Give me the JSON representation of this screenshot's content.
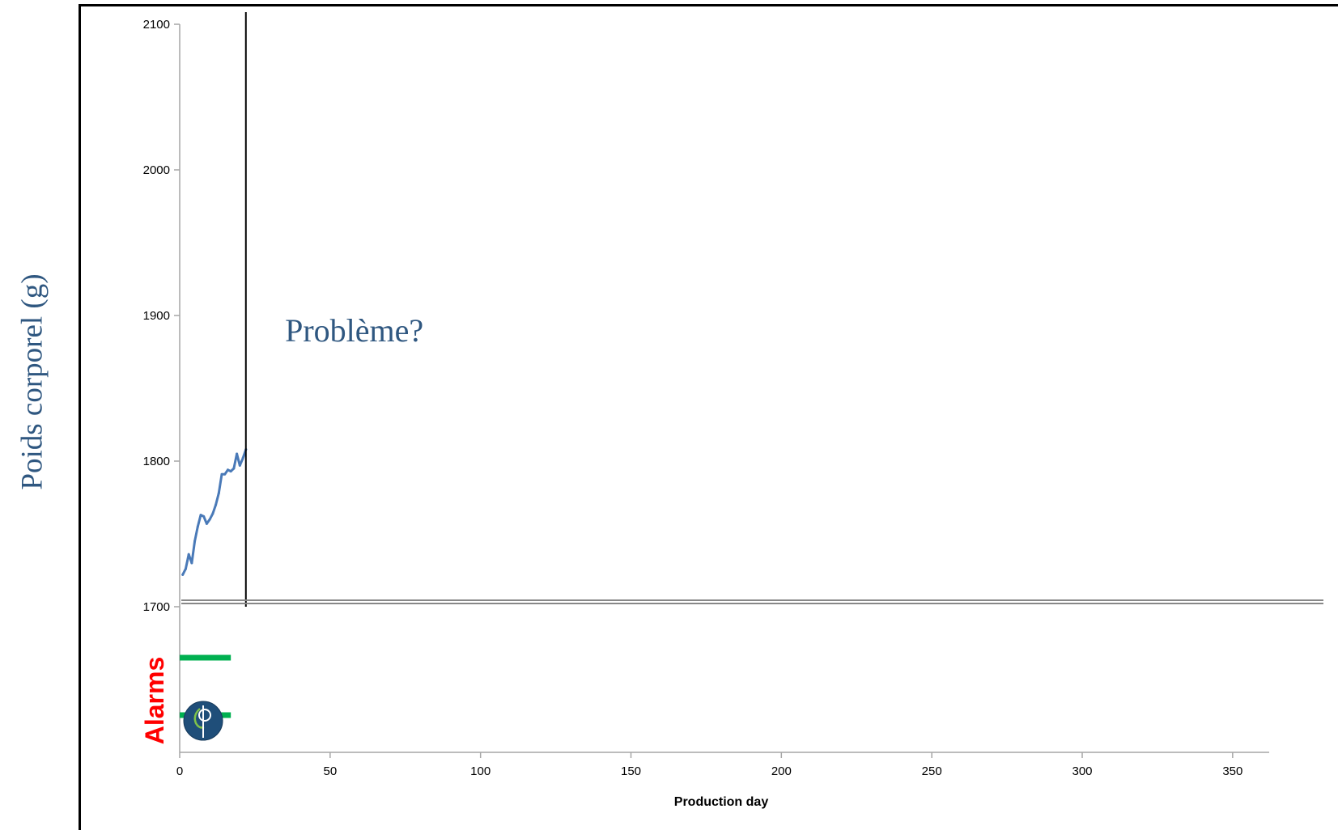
{
  "chart_data": {
    "type": "line",
    "title": "",
    "ylabel": "Poids corporel (g)",
    "xlabel": "Production day",
    "xlim": [
      0,
      360
    ],
    "ylim": [
      1600,
      2100
    ],
    "xticks": [
      0,
      50,
      100,
      150,
      200,
      250,
      300,
      350
    ],
    "yticks": [
      1700,
      1800,
      1900,
      2000,
      2100
    ],
    "grid": false,
    "series": [
      {
        "color": "#4a7ab8",
        "x": [
          1,
          2,
          3,
          4,
          5,
          6,
          7,
          8,
          9,
          10,
          11,
          12,
          13,
          14,
          15,
          16,
          17,
          18,
          19,
          20,
          21,
          22
        ],
        "y": [
          1722,
          1726,
          1736,
          1730,
          1745,
          1755,
          1763,
          1762,
          1757,
          1760,
          1764,
          1770,
          1778,
          1791,
          1791,
          1794,
          1793,
          1795,
          1805,
          1797,
          1802,
          1808
        ]
      }
    ],
    "vertical_marker_x": 22,
    "annotation": "Problème?",
    "alarm_label": "Alarms",
    "alarm_color": "#00b050",
    "alarms": [
      {
        "x_start": 0,
        "x_end": 17
      },
      {
        "x_start": 0,
        "x_end": 17
      }
    ]
  },
  "logo_icon": "circle-phi-logo"
}
